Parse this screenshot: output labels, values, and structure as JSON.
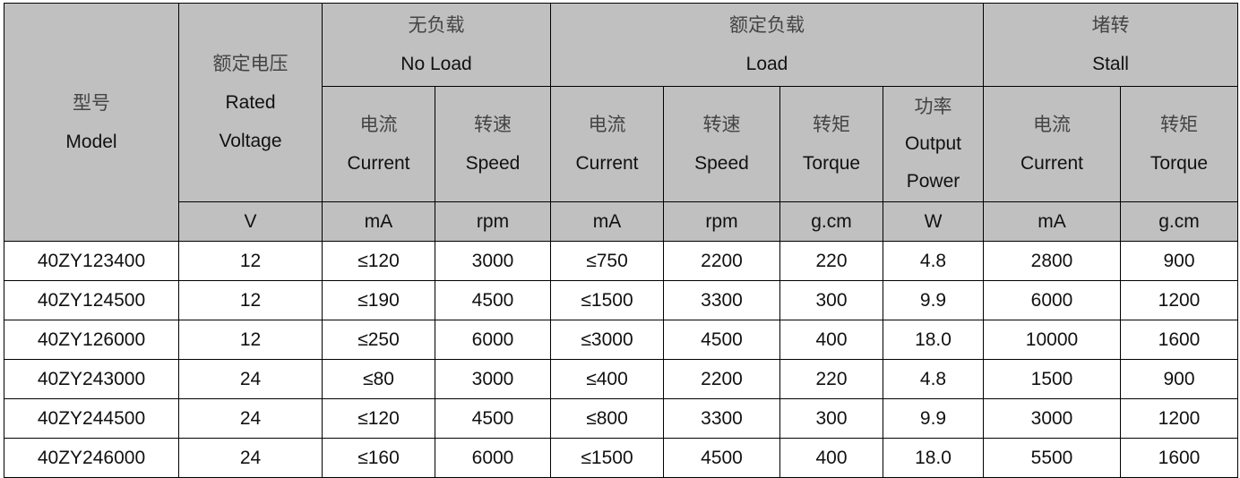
{
  "header": {
    "model": {
      "zh": "型号",
      "en": "Model"
    },
    "voltage": {
      "zh": "额定电压",
      "en1": "Rated",
      "en2": "Voltage",
      "unit": "V"
    },
    "no_load": {
      "zh": "无负载",
      "en": "No Load"
    },
    "load": {
      "zh": "额定负载",
      "en": "Load"
    },
    "stall": {
      "zh": "堵转",
      "en": "Stall"
    },
    "sub": [
      {
        "zh": "电流",
        "en": "Current",
        "unit": "mA"
      },
      {
        "zh": "转速",
        "en": "Speed",
        "unit": "rpm"
      },
      {
        "zh": "电流",
        "en": "Current",
        "unit": "mA"
      },
      {
        "zh": "转速",
        "en": "Speed",
        "unit": "rpm"
      },
      {
        "zh": "转矩",
        "en": "Torque",
        "unit": "g.cm"
      },
      {
        "zh": "功率",
        "en1": "Output",
        "en2": "Power",
        "unit": "W"
      },
      {
        "zh": "电流",
        "en": "Current",
        "unit": "mA"
      },
      {
        "zh": "转矩",
        "en": "Torque",
        "unit": "g.cm"
      }
    ]
  },
  "rows": [
    [
      "40ZY123400",
      "12",
      "≤120",
      "3000",
      "≤750",
      "2200",
      "220",
      "4.8",
      "2800",
      "900"
    ],
    [
      "40ZY124500",
      "12",
      "≤190",
      "4500",
      "≤1500",
      "3300",
      "300",
      "9.9",
      "6000",
      "1200"
    ],
    [
      "40ZY126000",
      "12",
      "≤250",
      "6000",
      "≤3000",
      "4500",
      "400",
      "18.0",
      "10000",
      "1600"
    ],
    [
      "40ZY243000",
      "24",
      "≤80",
      "3000",
      "≤400",
      "2200",
      "220",
      "4.8",
      "1500",
      "900"
    ],
    [
      "40ZY244500",
      "24",
      "≤120",
      "4500",
      "≤800",
      "3300",
      "300",
      "9.9",
      "3000",
      "1200"
    ],
    [
      "40ZY246000",
      "24",
      "≤160",
      "6000",
      "≤1500",
      "4500",
      "400",
      "18.0",
      "5500",
      "1600"
    ]
  ],
  "colors": {
    "header_bg": "#c0c0c0",
    "border": "#000000"
  }
}
